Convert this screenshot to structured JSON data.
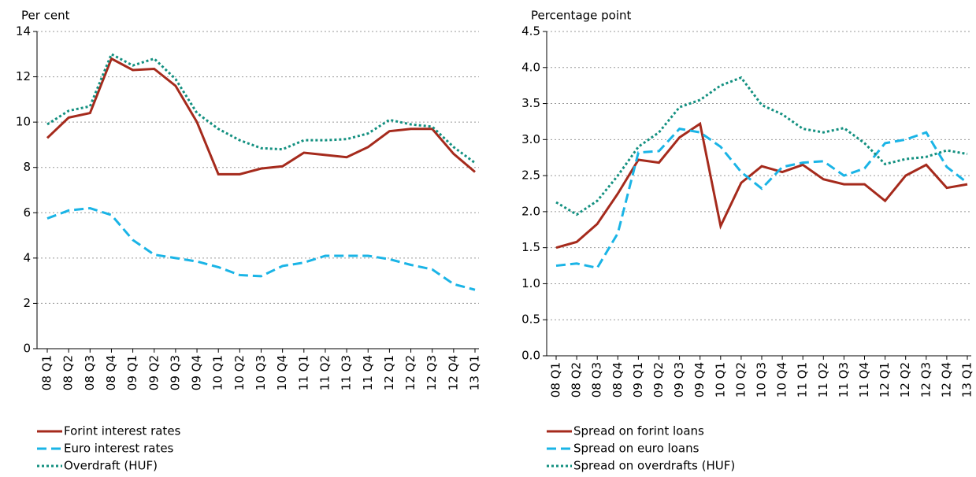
{
  "chart_data": [
    {
      "type": "line",
      "y_label": "Per cent",
      "categories": [
        "08 Q1",
        "08 Q2",
        "08 Q3",
        "08 Q4",
        "09 Q1",
        "09 Q2",
        "09 Q3",
        "09 Q4",
        "10 Q1",
        "10 Q2",
        "10 Q3",
        "10 Q4",
        "11 Q1",
        "11 Q2",
        "11 Q3",
        "11 Q4",
        "12 Q1",
        "12 Q2",
        "12 Q3",
        "12 Q4",
        "13 Q1"
      ],
      "ylim": [
        0,
        14
      ],
      "yticks": [
        0,
        2,
        4,
        6,
        8,
        10,
        12,
        14
      ],
      "grid": true,
      "series": [
        {
          "name": "Forint interest rates",
          "color": "#a52a1c",
          "style": "solid",
          "values": [
            9.3,
            10.2,
            10.4,
            12.8,
            12.3,
            12.35,
            11.6,
            10.0,
            7.7,
            7.7,
            7.95,
            8.05,
            8.65,
            8.55,
            8.45,
            8.9,
            9.6,
            9.7,
            9.7,
            8.6,
            7.8
          ]
        },
        {
          "name": "Euro interest rates",
          "color": "#1ab4e6",
          "style": "dashed",
          "values": [
            5.75,
            6.1,
            6.2,
            5.9,
            4.8,
            4.15,
            4.0,
            3.85,
            3.6,
            3.25,
            3.2,
            3.65,
            3.8,
            4.1,
            4.1,
            4.1,
            3.95,
            3.7,
            3.5,
            2.85,
            2.6
          ]
        },
        {
          "name": "Overdraft (HUF)",
          "color": "#139080",
          "style": "dotted",
          "values": [
            9.9,
            10.5,
            10.7,
            13.0,
            12.5,
            12.8,
            11.9,
            10.4,
            9.7,
            9.2,
            8.85,
            8.8,
            9.2,
            9.2,
            9.25,
            9.5,
            10.1,
            9.9,
            9.8,
            8.9,
            8.2
          ]
        }
      ]
    },
    {
      "type": "line",
      "y_label": "Percentage point",
      "categories": [
        "08 Q1",
        "08 Q2",
        "08 Q3",
        "08 Q4",
        "09 Q1",
        "09 Q2",
        "09 Q3",
        "09 Q4",
        "10 Q1",
        "10 Q2",
        "10 Q3",
        "10 Q4",
        "11 Q1",
        "11 Q2",
        "11 Q3",
        "11 Q4",
        "12 Q1",
        "12 Q2",
        "12 Q3",
        "12 Q4",
        "13 Q1"
      ],
      "ylim": [
        0,
        4.5
      ],
      "yticks": [
        {
          "value": 0,
          "label": "0.0"
        },
        {
          "value": 0.5,
          "label": "0.5"
        },
        {
          "value": 1,
          "label": "1.0"
        },
        {
          "value": 1.5,
          "label": "1.5"
        },
        {
          "value": 2,
          "label": "2.0"
        },
        {
          "value": 2.5,
          "label": "2.5"
        },
        {
          "value": 3,
          "label": "3.0"
        },
        {
          "value": 3.5,
          "label": "3.5"
        },
        {
          "value": 4,
          "label": "4.0"
        },
        {
          "value": 4.5,
          "label": "4.5"
        }
      ],
      "grid": true,
      "series": [
        {
          "name": "Spread on forint loans",
          "color": "#a52a1c",
          "style": "solid",
          "values": [
            1.5,
            1.58,
            1.83,
            2.25,
            2.72,
            2.68,
            3.03,
            3.22,
            1.8,
            2.4,
            2.63,
            2.55,
            2.65,
            2.45,
            2.38,
            2.38,
            2.15,
            2.5,
            2.65,
            2.33,
            2.38
          ]
        },
        {
          "name": "Spread on euro loans",
          "color": "#1ab4e6",
          "style": "dashed",
          "values": [
            1.25,
            1.28,
            1.22,
            1.7,
            2.82,
            2.84,
            3.15,
            3.1,
            2.9,
            2.55,
            2.32,
            2.62,
            2.68,
            2.7,
            2.5,
            2.6,
            2.95,
            3.0,
            3.1,
            2.62,
            2.4
          ]
        },
        {
          "name": "Spread on overdrafts (HUF)",
          "color": "#139080",
          "style": "dotted",
          "values": [
            2.13,
            1.96,
            2.15,
            2.5,
            2.9,
            3.1,
            3.45,
            3.55,
            3.75,
            3.86,
            3.48,
            3.35,
            3.15,
            3.1,
            3.16,
            2.95,
            2.66,
            2.73,
            2.76,
            2.85,
            2.8
          ]
        }
      ]
    }
  ]
}
